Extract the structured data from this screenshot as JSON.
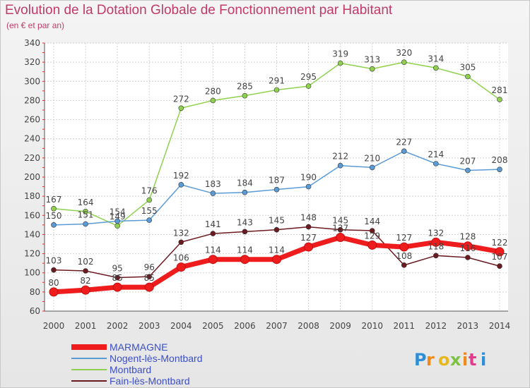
{
  "chart_data": {
    "type": "line",
    "title": "Evolution de la Dotation Globale de Fonctionnement par Habitant",
    "subtitle": "(en € et par an)",
    "xlabel": "",
    "ylabel": "",
    "ylim": [
      60,
      340
    ],
    "y_ticks": [
      60,
      80,
      100,
      120,
      140,
      160,
      180,
      200,
      220,
      240,
      260,
      280,
      300,
      320,
      340
    ],
    "categories": [
      "2000",
      "2001",
      "2002",
      "2003",
      "2004",
      "2005",
      "2006",
      "2007",
      "2008",
      "2009",
      "2010",
      "2011",
      "2012",
      "2013",
      "2014"
    ],
    "grid": true,
    "legend_position": "bottom-left",
    "series": [
      {
        "name": "Fain-lès-Montbard",
        "color": "#6b1a1f",
        "values": [
          103,
          102,
          95,
          96,
          132,
          141,
          143,
          145,
          148,
          145,
          144,
          108,
          118,
          116,
          107
        ]
      },
      {
        "name": "Montbard",
        "color": "#8fd14f",
        "values": [
          167,
          164,
          149,
          176,
          272,
          280,
          285,
          291,
          295,
          319,
          313,
          320,
          314,
          305,
          281
        ]
      },
      {
        "name": "Nogent-lès-Montbard",
        "color": "#5b9bd5",
        "values": [
          150,
          151,
          154,
          155,
          192,
          183,
          184,
          187,
          190,
          212,
          210,
          227,
          214,
          207,
          208
        ]
      },
      {
        "name": "MARMAGNE",
        "color": "#ee1c1c",
        "values": [
          80,
          82,
          85,
          85,
          106,
          114,
          114,
          114,
          127,
          137,
          129,
          127,
          132,
          128,
          122
        ]
      }
    ]
  },
  "legend": {
    "items": [
      "MARMAGNE",
      "Nogent-lès-Montbard",
      "Montbard",
      "Fain-lès-Montbard"
    ]
  },
  "branding": {
    "logo_text": "Proxiti"
  }
}
